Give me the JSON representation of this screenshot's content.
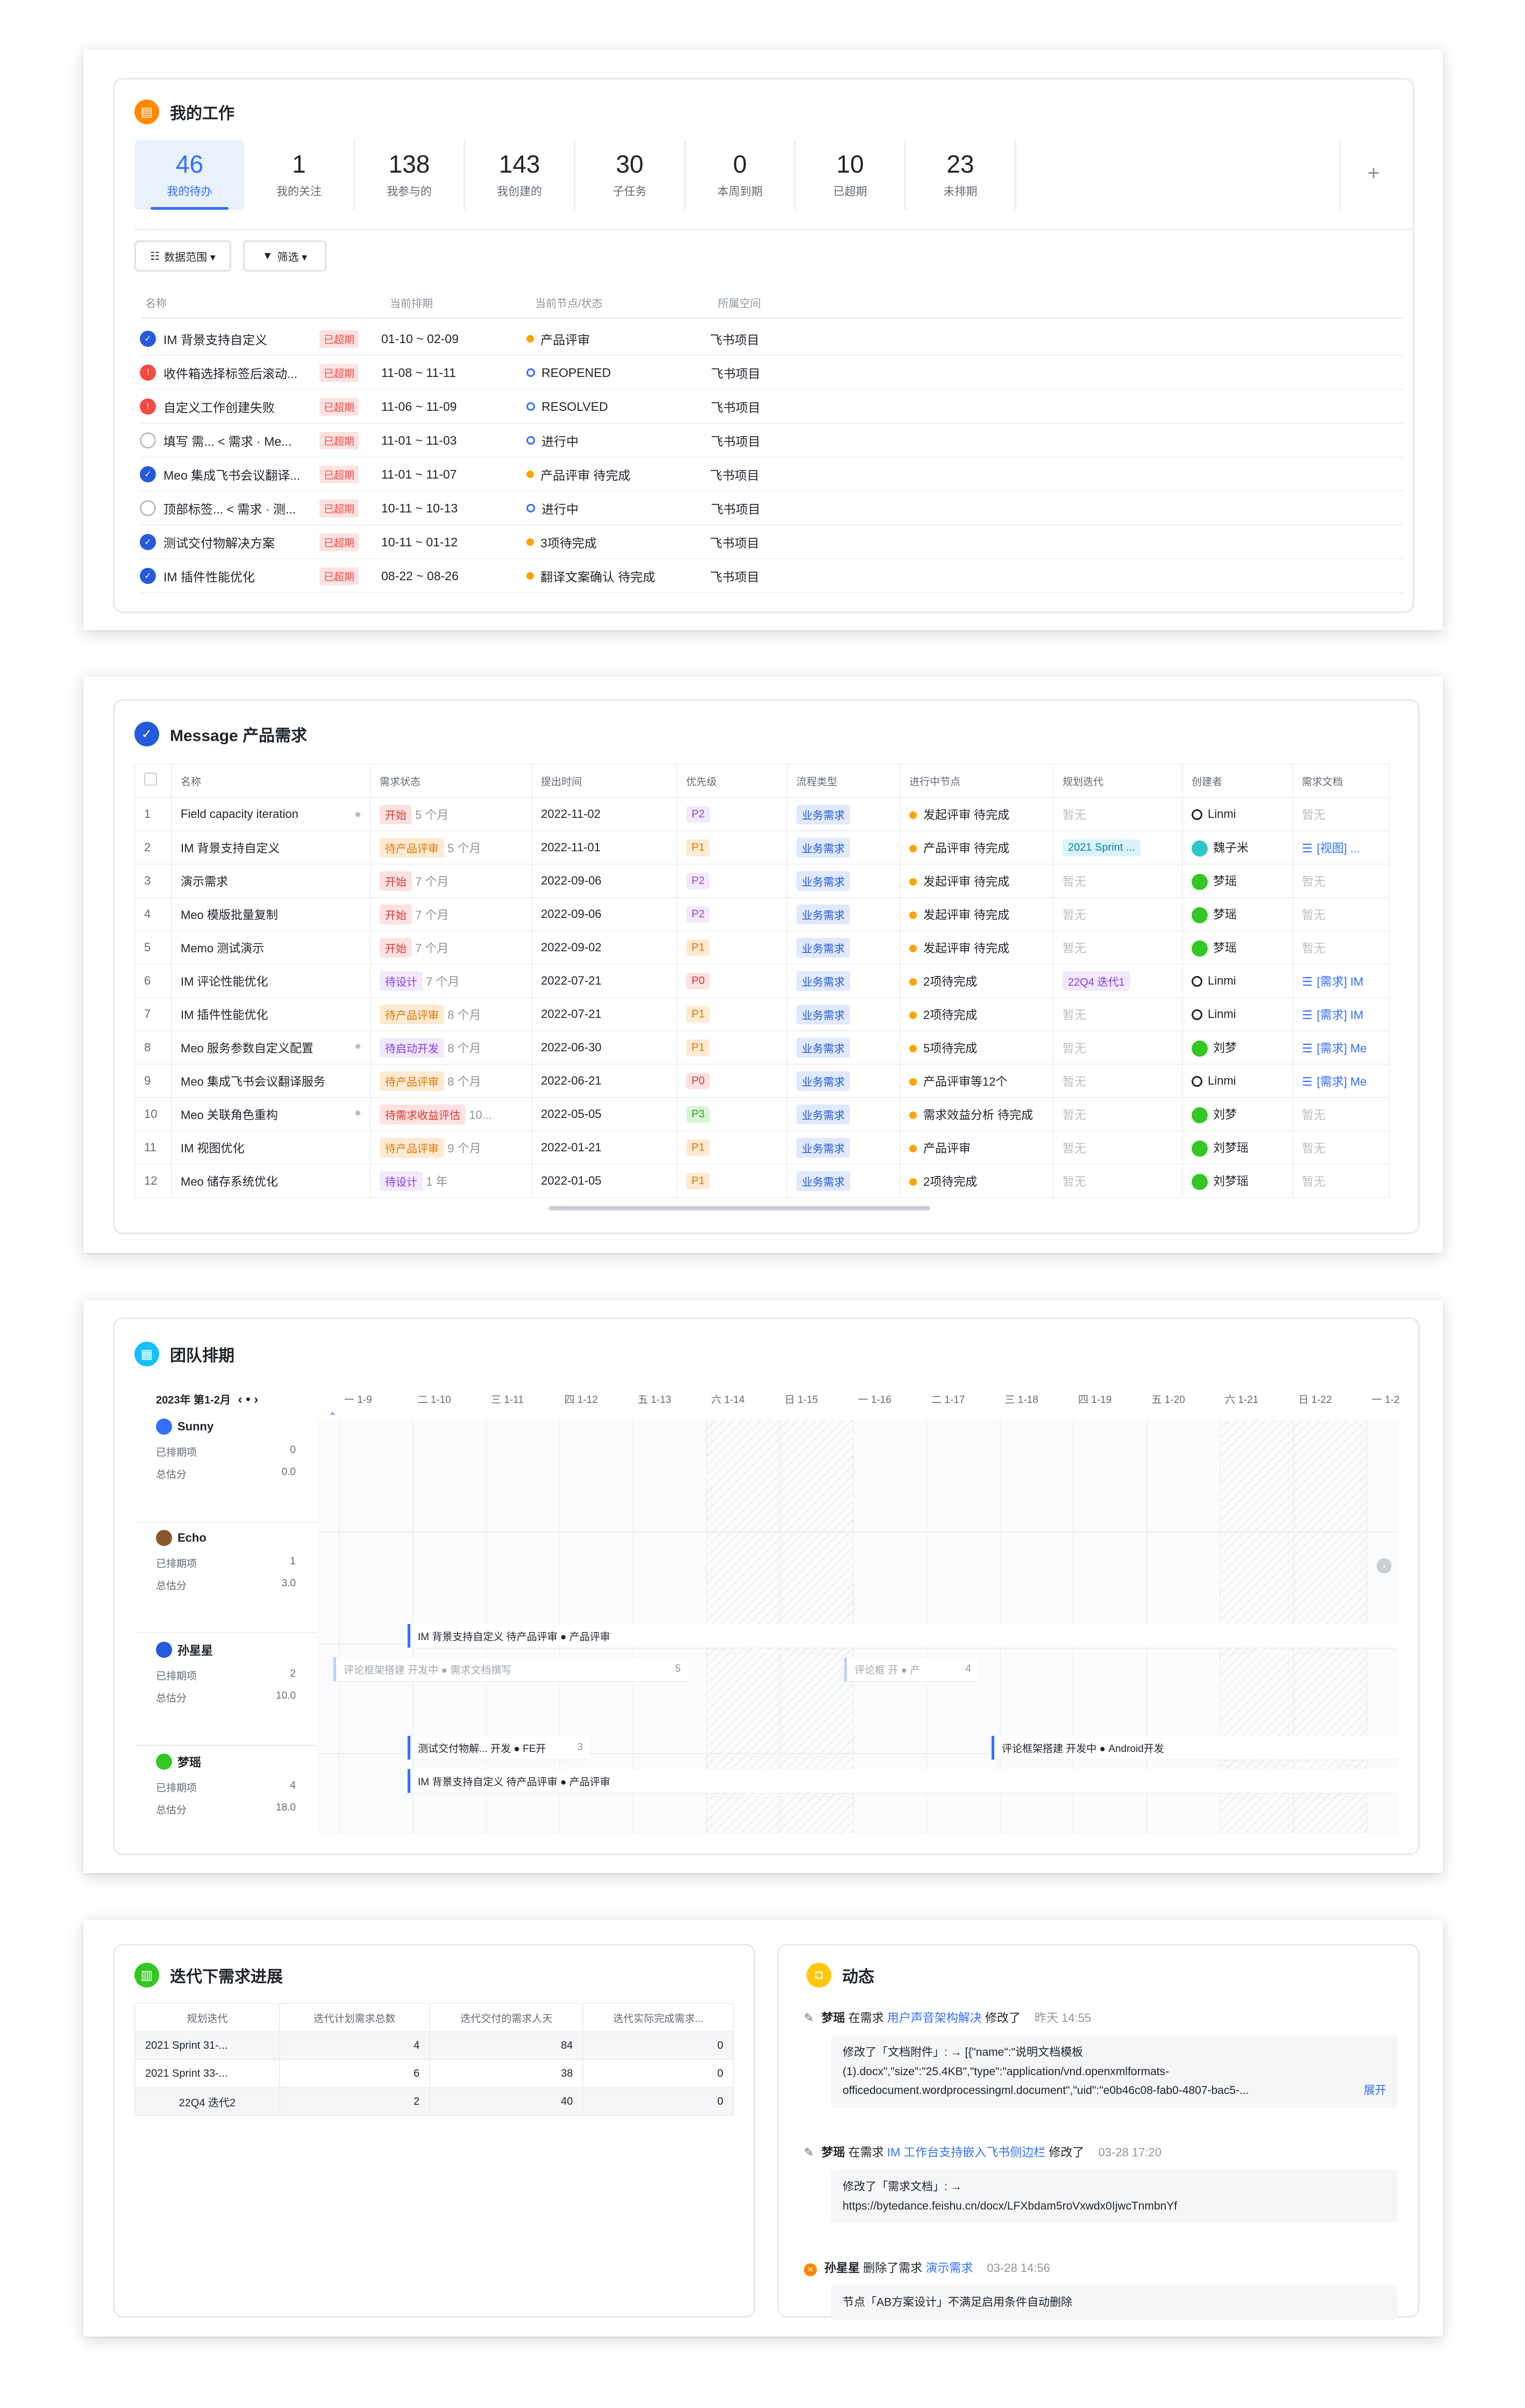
{
  "work": {
    "title": "我的工作",
    "stats": [
      {
        "n": "46",
        "l": "我的待办"
      },
      {
        "n": "1",
        "l": "我的关注"
      },
      {
        "n": "138",
        "l": "我参与的"
      },
      {
        "n": "143",
        "l": "我创建的"
      },
      {
        "n": "30",
        "l": "子任务"
      },
      {
        "n": "0",
        "l": "本周到期"
      },
      {
        "n": "10",
        "l": "已超期"
      },
      {
        "n": "23",
        "l": "未排期"
      }
    ],
    "plus": "+",
    "filter_range": "数据范围 ▾",
    "filter": "筛选 ▾",
    "headers": {
      "name": "名称",
      "date": "当前排期",
      "node": "当前节点/状态",
      "space": "所属空间"
    },
    "rows": [
      {
        "icon": "blue",
        "name": "IM 背景支持自定义",
        "tag": "已超期",
        "date": "01-10 ~ 02-09",
        "status": "产品评审",
        "dot": "orange",
        "space": "飞书项目"
      },
      {
        "icon": "red",
        "name": "收件箱选择标签后滚动...",
        "tag": "已超期",
        "date": "11-08 ~ 11-11",
        "status": "REOPENED",
        "dot": "ring",
        "space": "飞书项目"
      },
      {
        "icon": "red",
        "name": "自定义工作创建失败",
        "tag": "已超期",
        "date": "11-06 ~ 11-09",
        "status": "RESOLVED",
        "dot": "ring",
        "space": "飞书项目"
      },
      {
        "icon": "grey",
        "name": "填写 需...   < 需求 · Me...",
        "tag": "已超期",
        "date": "11-01 ~ 11-03",
        "status": "进行中",
        "dot": "ring",
        "space": "飞书项目"
      },
      {
        "icon": "blue",
        "name": "Meo 集成飞书会议翻译...",
        "tag": "已超期",
        "date": "11-01 ~ 11-07",
        "status": "产品评审 待完成",
        "dot": "orange",
        "space": "飞书项目"
      },
      {
        "icon": "grey",
        "name": "顶部标签...   < 需求 · 测...",
        "tag": "已超期",
        "date": "10-11 ~ 10-13",
        "status": "进行中",
        "dot": "ring",
        "space": "飞书项目"
      },
      {
        "icon": "blue",
        "name": "测试交付物解决方案",
        "tag": "已超期",
        "date": "10-11 ~ 01-12",
        "status": "3项待完成",
        "dot": "orange",
        "space": "飞书项目"
      },
      {
        "icon": "blue",
        "name": "IM 插件性能优化",
        "tag": "已超期",
        "date": "08-22 ~ 08-26",
        "status": "翻译文案确认 待完成",
        "dot": "orange",
        "space": "飞书项目"
      }
    ]
  },
  "req": {
    "title": "Message 产品需求",
    "headers": [
      "名称",
      "需求状态",
      "提出时间",
      "优先级",
      "流程类型",
      "进行中节点",
      "规划迭代",
      "创建者",
      "需求文档"
    ],
    "rows": [
      {
        "no": "1",
        "name": "Field capacity iteration",
        "st": "开始",
        "stc": "st-start",
        "age": "5 个月",
        "date": "2022-11-02",
        "pr": "P2",
        "prc": "pr-p2",
        "flow": "业务需求",
        "node": "发起评审 待完成",
        "iter": "暂无",
        "iterc": "muted",
        "owner": "Linmi",
        "doc": "暂无"
      },
      {
        "no": "2",
        "name": "IM 背景支持自定义",
        "st": "待产品评审",
        "stc": "st-wait",
        "age": "5 个月",
        "date": "2022-11-01",
        "pr": "P1",
        "prc": "pr-p1",
        "flow": "业务需求",
        "node": "产品评审 待完成",
        "iter": "2021 Sprint ...",
        "iterc": "iter",
        "owner": "魏子米",
        "doc": "[视图] ..."
      },
      {
        "no": "3",
        "name": "演示需求",
        "st": "开始",
        "stc": "st-start",
        "age": "7 个月",
        "date": "2022-09-06",
        "pr": "P2",
        "prc": "pr-p2",
        "flow": "业务需求",
        "node": "发起评审 待完成",
        "iter": "暂无",
        "iterc": "muted",
        "owner": "梦瑶",
        "doc": "暂无"
      },
      {
        "no": "4",
        "name": "Meo 模版批量复制",
        "st": "开始",
        "stc": "st-start",
        "age": "7 个月",
        "date": "2022-09-06",
        "pr": "P2",
        "prc": "pr-p2",
        "flow": "业务需求",
        "node": "发起评审 待完成",
        "iter": "暂无",
        "iterc": "muted",
        "owner": "梦瑶",
        "doc": "暂无"
      },
      {
        "no": "5",
        "name": "Memo 测试演示",
        "st": "开始",
        "stc": "st-start",
        "age": "7 个月",
        "date": "2022-09-02",
        "pr": "P1",
        "prc": "pr-p1",
        "flow": "业务需求",
        "node": "发起评审 待完成",
        "iter": "暂无",
        "iterc": "muted",
        "owner": "梦瑶",
        "doc": "暂无"
      },
      {
        "no": "6",
        "name": "IM 评论性能优化",
        "st": "待设计",
        "stc": "st-dev",
        "age": "7 个月",
        "date": "2022-07-21",
        "pr": "P0",
        "prc": "pr-p0",
        "flow": "业务需求",
        "node": "2项待完成",
        "iter": "22Q4 迭代1",
        "iterc": "iter2",
        "owner": "Linmi",
        "doc": "[需求] IM"
      },
      {
        "no": "7",
        "name": "IM 插件性能优化",
        "st": "待产品评审",
        "stc": "st-wait",
        "age": "8 个月",
        "date": "2022-07-21",
        "pr": "P1",
        "prc": "pr-p1",
        "flow": "业务需求",
        "node": "2项待完成",
        "iter": "暂无",
        "iterc": "muted",
        "owner": "Linmi",
        "doc": "[需求] IM"
      },
      {
        "no": "8",
        "name": "Meo 服务参数自定义配置",
        "st": "待启动开发",
        "stc": "st-dev",
        "age": "8 个月",
        "date": "2022-06-30",
        "pr": "P1",
        "prc": "pr-p1",
        "flow": "业务需求",
        "node": "5项待完成",
        "iter": "暂无",
        "iterc": "muted",
        "owner": "刘梦",
        "doc": "[需求] Me"
      },
      {
        "no": "9",
        "name": "Meo 集成飞书会议翻译服务",
        "st": "待产品评审",
        "stc": "st-wait",
        "age": "8 个月",
        "date": "2022-06-21",
        "pr": "P0",
        "prc": "pr-p0",
        "flow": "业务需求",
        "node": "产品评审等12个",
        "iter": "暂无",
        "iterc": "muted",
        "owner": "Linmi",
        "doc": "[需求] Me"
      },
      {
        "no": "10",
        "name": "Meo 关联角色重构",
        "st": "待需求收益评估",
        "stc": "st-eval",
        "age": "10...",
        "date": "2022-05-05",
        "pr": "P3",
        "prc": "pr-p3",
        "flow": "业务需求",
        "node": "需求效益分析 待完成",
        "iter": "暂无",
        "iterc": "muted",
        "owner": "刘梦",
        "doc": "暂无"
      },
      {
        "no": "11",
        "name": "IM 视图优化",
        "st": "待产品评审",
        "stc": "st-wait",
        "age": "9 个月",
        "date": "2022-01-21",
        "pr": "P1",
        "prc": "pr-p1",
        "flow": "业务需求",
        "node": "产品评审",
        "iter": "暂无",
        "iterc": "muted",
        "owner": "刘梦瑶",
        "doc": "暂无"
      },
      {
        "no": "12",
        "name": "Meo 储存系统优化",
        "st": "待设计",
        "stc": "st-dev",
        "age": "1 年",
        "date": "2022-01-05",
        "pr": "P1",
        "prc": "pr-p1",
        "flow": "业务需求",
        "node": "2项待完成",
        "iter": "暂无",
        "iterc": "muted",
        "owner": "刘梦瑶",
        "doc": "暂无"
      }
    ]
  },
  "team": {
    "title": "团队排期",
    "period": "2023年 第1-2月",
    "nav": "‹ • ›",
    "days": [
      "一 1-9",
      "二 1-10",
      "三 1-11",
      "四 1-12",
      "五 1-13",
      "六 1-14",
      "日 1-15",
      "一 1-16",
      "二 1-17",
      "三 1-18",
      "四 1-19",
      "五 1-20",
      "六 1-21",
      "日 1-22",
      "一 1-2"
    ],
    "label_sched": "已排期项",
    "label_score": "总估分",
    "people": [
      {
        "name": "Sunny",
        "sched": "0",
        "score": "0.0"
      },
      {
        "name": "Echo",
        "sched": "1",
        "score": "3.0"
      },
      {
        "name": "孙星星",
        "sched": "2",
        "score": "10.0"
      },
      {
        "name": "梦瑶",
        "sched": "4",
        "score": "18.0"
      }
    ],
    "bars": {
      "b1": "IM 背景支持自定义  待产品评审  ● 产品评审",
      "b2": "评论框架搭建  开发中  ● 需求文档撰写",
      "b2n": "5",
      "b3": "评论框  开  ● 产",
      "b3n": "4",
      "b4": "测试交付物解...  开发  ● FE开",
      "b4n": "3",
      "b5": "评论框架搭建  开发中  ● Android开发",
      "b6": "IM 背景支持自定义  待产品评审  ● 产品评审"
    }
  },
  "iter": {
    "title": "迭代下需求进展",
    "headers": [
      "规划迭代",
      "迭代计划需求总数",
      "迭代交付的需求人天",
      "迭代实际完成需求..."
    ],
    "rows": [
      [
        "2021 Sprint 31-...",
        "4",
        "84",
        "0"
      ],
      [
        "2021 Sprint 33-...",
        "6",
        "38",
        "0"
      ],
      [
        "22Q4 迭代2",
        "2",
        "40",
        "0"
      ]
    ]
  },
  "activity": {
    "title": "动态",
    "items": [
      {
        "user": "梦瑶",
        "verb": "在需求",
        "target": "用户声音架构解决",
        "action": "修改了",
        "time": "昨天 14:55",
        "lines": [
          "修改了「文档附件」: → [{\"name\":\"说明文档模板",
          "(1).docx\",\"size\":\"25.4KB\",\"type\":\"application/vnd.openxmlformats-",
          "officedocument.wordprocessingml.document\",\"uid\":\"e0b46c08-fab0-4807-bac5-..."
        ],
        "more": "展开"
      },
      {
        "user": "梦瑶",
        "verb": "在需求",
        "target": "IM 工作台支持嵌入飞书侧边栏",
        "action": "修改了",
        "time": "03-28 17:20",
        "lines": [
          "修改了「需求文档」: →",
          "https://bytedance.feishu.cn/docx/LFXbdam5roVxwdx0IjwcTnmbnYf"
        ]
      },
      {
        "user": "孙星星",
        "verb": "删除了需求",
        "target": "演示需求",
        "action": "",
        "time": "03-28 14:56",
        "lines": [
          "节点「AB方案设计」不满足启用条件自动删除"
        ]
      }
    ]
  }
}
